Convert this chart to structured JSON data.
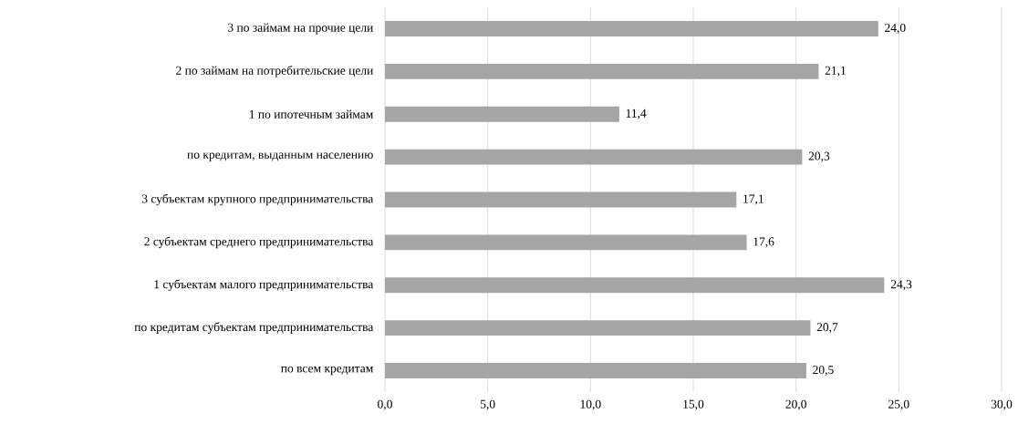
{
  "chart_data": {
    "type": "bar",
    "orientation": "horizontal",
    "categories": [
      "3 по займам на прочие цели",
      "2 по займам на потребительские цели",
      "1 по ипотечным займам",
      "по кредитам, выданным населению",
      "3 субъектам крупного предпринимательства",
      "2 субъектам среднего предпринимательства",
      "1 субъектам малого предпринимательства",
      "по кредитам субъектам предпринимательства",
      "по всем кредитам"
    ],
    "values": [
      24.0,
      21.1,
      11.4,
      20.3,
      17.1,
      17.6,
      24.3,
      20.7,
      20.5
    ],
    "value_labels": [
      "24,0",
      "21,1",
      "11,4",
      "20,3",
      "17,1",
      "17,6",
      "24,3",
      "20,7",
      "20,5"
    ],
    "color": "#a5a5a5",
    "xlim": [
      0,
      30
    ],
    "xticks": [
      {
        "value": 0,
        "label": "0,0"
      },
      {
        "value": 5,
        "label": "5,0"
      },
      {
        "value": 10,
        "label": "10,0"
      },
      {
        "value": 15,
        "label": "15,0"
      },
      {
        "value": 20,
        "label": "20,0"
      },
      {
        "value": 25,
        "label": "25,0"
      },
      {
        "value": 30,
        "label": "30,0"
      }
    ],
    "grid": "x"
  }
}
